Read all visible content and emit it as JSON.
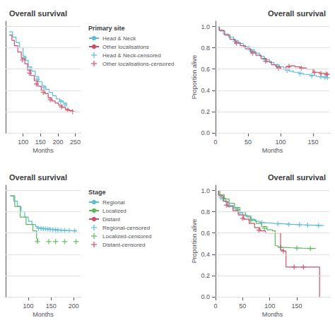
{
  "chart_data": [
    {
      "type": "line",
      "title": "Overall survival",
      "xlabel": "Months",
      "xlim": [
        50,
        265
      ],
      "ylim": [
        0.0,
        1.05
      ],
      "xticks": [
        100,
        150,
        200,
        250
      ],
      "yticks": [
        0,
        0.2,
        0.4,
        0.6,
        0.8,
        1
      ],
      "grid": true,
      "tick_labels": "x",
      "legend": "right",
      "legend_title": "Primary site",
      "series": [
        {
          "name": "Head & Neck",
          "type": "step",
          "color": "#5bbcd6",
          "x": [
            60,
            70,
            80,
            90,
            100,
            108,
            115,
            125,
            135,
            145,
            155,
            165,
            175,
            185,
            195,
            205,
            215,
            225
          ],
          "values": [
            0.95,
            0.9,
            0.85,
            0.8,
            0.72,
            0.68,
            0.62,
            0.58,
            0.53,
            0.48,
            0.44,
            0.41,
            0.38,
            0.35,
            0.32,
            0.3,
            0.28,
            0.25
          ]
        },
        {
          "name": "Other localisations",
          "type": "step",
          "color": "#c9506a",
          "x": [
            60,
            68,
            75,
            85,
            95,
            105,
            113,
            122,
            132,
            142,
            152,
            162,
            172,
            182,
            192,
            202,
            212,
            222,
            232,
            242
          ],
          "values": [
            0.92,
            0.87,
            0.82,
            0.76,
            0.7,
            0.65,
            0.59,
            0.54,
            0.49,
            0.44,
            0.4,
            0.37,
            0.33,
            0.3,
            0.28,
            0.26,
            0.24,
            0.22,
            0.21,
            0.2
          ]
        },
        {
          "name": "Head & Neck-censored",
          "type": "scatter",
          "marker": "plus",
          "color": "#5bbcd6",
          "x": [
            103,
            120,
            140,
            160,
            208,
            220
          ],
          "values": [
            0.705,
            0.6,
            0.505,
            0.425,
            0.294,
            0.265
          ]
        },
        {
          "name": "Other localisations-censored",
          "type": "scatter",
          "marker": "plus",
          "color": "#c9506a",
          "x": [
            98,
            118,
            138,
            158,
            178,
            210,
            228,
            242
          ],
          "values": [
            0.685,
            0.5622222222222222,
            0.46,
            0.382,
            0.312,
            0.244,
            0.214,
            0.2
          ]
        }
      ]
    },
    {
      "type": "line",
      "title": "Overall survival",
      "xlabel": "Months",
      "ylabel": "Proportion alive",
      "xlim": [
        0,
        175
      ],
      "ylim": [
        0.0,
        1.05
      ],
      "xticks": [
        0,
        50,
        100,
        150
      ],
      "yticks": [
        {
          "value": 0,
          "label": "0.0"
        },
        0.2,
        0.4,
        0.6,
        0.8,
        {
          "value": 1,
          "label": "1.0"
        }
      ],
      "grid": true,
      "series": [
        {
          "type": "step",
          "color": "#5bbcd6",
          "x": [
            0,
            5,
            12,
            20,
            28,
            35,
            43,
            52,
            60,
            68,
            75,
            83,
            90,
            98,
            105,
            113,
            120,
            128,
            135,
            145,
            155,
            165,
            170
          ],
          "values": [
            1.0,
            0.97,
            0.93,
            0.9,
            0.87,
            0.84,
            0.81,
            0.78,
            0.75,
            0.72,
            0.69,
            0.66,
            0.64,
            0.62,
            0.6,
            0.58,
            0.57,
            0.56,
            0.55,
            0.54,
            0.53,
            0.525,
            0.52
          ]
        },
        {
          "type": "step",
          "color": "#c9506a",
          "x": [
            0,
            6,
            14,
            22,
            30,
            38,
            46,
            54,
            62,
            70,
            78,
            86,
            93,
            100,
            108,
            115,
            122,
            130,
            140,
            150,
            160,
            168,
            172
          ],
          "values": [
            1.0,
            0.96,
            0.92,
            0.88,
            0.85,
            0.82,
            0.79,
            0.76,
            0.73,
            0.7,
            0.67,
            0.64,
            0.62,
            0.6,
            0.62,
            0.63,
            0.62,
            0.61,
            0.6,
            0.57,
            0.56,
            0.555,
            0.55
          ]
        },
        {
          "type": "scatter",
          "marker": "plus",
          "color": "#5bbcd6",
          "x": [
            30,
            55,
            75,
            95,
            110,
            130,
            148,
            162,
            168,
            172
          ],
          "values": [
            0.8614285714285714,
            0.76875,
            0.69,
            0.6275,
            0.5875,
            0.5571428571428572,
            0.537,
            0.5265,
            0.522,
            0.52
          ]
        },
        {
          "type": "scatter",
          "marker": "plus",
          "color": "#c9506a",
          "x": [
            32,
            57,
            77,
            97,
            113,
            132,
            152,
            162,
            170,
            172
          ],
          "values": [
            0.8425,
            0.74875,
            0.67375,
            0.6085714285714287,
            0.6271428571428571,
            0.608,
            0.568,
            0.55875,
            0.5525,
            0.55
          ]
        }
      ]
    },
    {
      "type": "line",
      "title": "Overall survival",
      "xlabel": "Months",
      "xlim": [
        50,
        215
      ],
      "ylim": [
        0.0,
        1.05
      ],
      "xticks": [
        100,
        150,
        200
      ],
      "yticks": [
        0,
        0.2,
        0.4,
        0.6,
        0.8,
        1
      ],
      "grid": true,
      "tick_labels": "x",
      "legend": "right",
      "legend_title": "Stage",
      "series": [
        {
          "name": "Regional",
          "type": "step",
          "color": "#5bbcd6",
          "x": [
            60,
            68,
            76,
            84,
            92,
            100,
            108,
            116,
            120,
            125,
            130,
            135,
            140,
            145,
            150,
            155,
            160,
            165,
            170,
            175,
            180,
            185,
            190,
            200,
            205
          ],
          "values": [
            0.95,
            0.9,
            0.85,
            0.8,
            0.75,
            0.71,
            0.68,
            0.66,
            0.65,
            0.645,
            0.642,
            0.64,
            0.638,
            0.636,
            0.634,
            0.632,
            0.63,
            0.628,
            0.626,
            0.625,
            0.624,
            0.623,
            0.622,
            0.621,
            0.62
          ]
        },
        {
          "name": "Localized",
          "type": "step",
          "color": "#5bb85b",
          "x": [
            60,
            70,
            82,
            95,
            110,
            118,
            120
          ],
          "values": [
            0.95,
            0.85,
            0.75,
            0.68,
            0.62,
            0.55,
            0.52
          ]
        },
        {
          "name": "Distant",
          "type": "step",
          "color": "#c9506a",
          "x": [],
          "values": []
        },
        {
          "name": "Regional-censored",
          "type": "scatter",
          "marker": "plus",
          "color": "#5bbcd6",
          "x": [
            122,
            128,
            133,
            138,
            143,
            148,
            154,
            160,
            165,
            172,
            180,
            190,
            202
          ],
          "values": [
            0.645,
            0.643,
            0.641,
            0.639,
            0.637,
            0.635,
            0.633,
            0.63,
            0.628,
            0.626,
            0.624,
            0.622,
            0.62
          ]
        },
        {
          "name": "Localized-censored",
          "type": "scatter",
          "marker": "plus",
          "color": "#5bb85b",
          "x": [
            120,
            145,
            160,
            180,
            205
          ],
          "values": [
            0.52,
            0.52,
            0.52,
            0.52,
            0.52
          ]
        },
        {
          "name": "Distant-censored",
          "type": "scatter",
          "marker": "plus",
          "color": "#c9506a",
          "x": [],
          "values": []
        }
      ]
    },
    {
      "type": "line",
      "title": "Overall survival",
      "xlabel": "Months",
      "ylabel": "Proportion alive",
      "xlim": [
        0,
        210
      ],
      "ylim": [
        0.0,
        1.05
      ],
      "xticks": [
        0,
        50,
        100,
        150
      ],
      "yticks": [
        {
          "value": 0,
          "label": "0.0"
        },
        0.2,
        0.4,
        0.6,
        0.8,
        {
          "value": 1,
          "label": "1.0"
        }
      ],
      "grid": true,
      "series": [
        {
          "type": "step",
          "color": "#5bbcd6",
          "x": [
            0,
            5,
            10,
            18,
            25,
            33,
            42,
            50,
            58,
            65,
            73,
            82,
            90,
            98,
            105,
            110,
            120,
            130,
            140,
            150,
            160,
            170,
            180,
            190,
            200
          ],
          "values": [
            1.0,
            0.96,
            0.93,
            0.89,
            0.86,
            0.83,
            0.8,
            0.77,
            0.75,
            0.73,
            0.71,
            0.7,
            0.695,
            0.692,
            0.69,
            0.688,
            0.685,
            0.682,
            0.68,
            0.678,
            0.676,
            0.674,
            0.672,
            0.67,
            0.668
          ]
        },
        {
          "type": "step",
          "color": "#5bb85b",
          "x": [
            0,
            8,
            16,
            25,
            35,
            45,
            55,
            65,
            75,
            85,
            95,
            105,
            110,
            115,
            120,
            130,
            140,
            150,
            160,
            175,
            185
          ],
          "values": [
            1.0,
            0.96,
            0.92,
            0.88,
            0.84,
            0.8,
            0.76,
            0.72,
            0.69,
            0.66,
            0.63,
            0.62,
            0.48,
            0.47,
            0.465,
            0.462,
            0.46,
            0.458,
            0.456,
            0.454,
            0.452
          ]
        },
        {
          "type": "step",
          "color": "#c9506a",
          "x": [
            0,
            6,
            14,
            22,
            32,
            42,
            52,
            62,
            72,
            82,
            92,
            102,
            112,
            120,
            125,
            130,
            145,
            160,
            175,
            188,
            192
          ],
          "values": [
            1.0,
            0.95,
            0.9,
            0.85,
            0.81,
            0.77,
            0.73,
            0.69,
            0.65,
            0.62,
            0.6,
            0.6,
            0.6,
            0.44,
            0.43,
            0.28,
            0.28,
            0.28,
            0.28,
            0.28,
            0.0
          ]
        },
        {
          "type": "scatter",
          "marker": "plus",
          "color": "#5bbcd6",
          "x": [
            10,
            25,
            45,
            65,
            85,
            115,
            135,
            155,
            170,
            190
          ],
          "values": [
            0.93,
            0.86,
            0.78875,
            0.73,
            0.698125,
            0.6865,
            0.681,
            0.677,
            0.674,
            0.67
          ]
        },
        {
          "type": "scatter",
          "marker": "plus",
          "color": "#5bb85b",
          "x": [
            15,
            40,
            65,
            90,
            120,
            150,
            175
          ],
          "values": [
            0.925,
            0.82,
            0.72,
            0.645,
            0.465,
            0.458,
            0.454
          ]
        },
        {
          "type": "scatter",
          "marker": "plus",
          "color": "#c9506a",
          "x": [
            20,
            50,
            80,
            125,
            145,
            162
          ],
          "values": [
            0.8625,
            0.738,
            0.626,
            0.43,
            0.28,
            0.28
          ]
        }
      ]
    }
  ]
}
